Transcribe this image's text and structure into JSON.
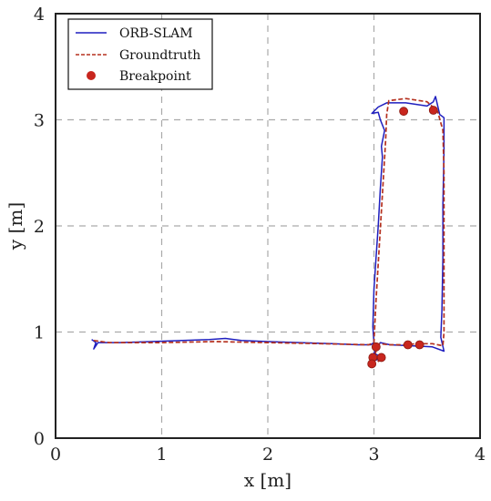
{
  "chart_data": {
    "type": "line",
    "title": "",
    "xlabel": "x [m]",
    "ylabel": "y [m]",
    "xlim": [
      0,
      4
    ],
    "ylim": [
      0,
      4
    ],
    "xticks": [
      "0",
      "1",
      "2",
      "3",
      "4"
    ],
    "yticks": [
      "0",
      "1",
      "2",
      "3",
      "4"
    ],
    "grid": true,
    "legend_position": "top-left",
    "series": [
      {
        "name": "ORB-SLAM",
        "kind": "line",
        "color": "#1f1fbf",
        "points": [
          [
            0.34,
            0.93
          ],
          [
            0.38,
            0.9
          ],
          [
            0.36,
            0.84
          ],
          [
            0.4,
            0.9
          ],
          [
            0.6,
            0.9
          ],
          [
            0.9,
            0.91
          ],
          [
            1.2,
            0.92
          ],
          [
            1.45,
            0.93
          ],
          [
            1.6,
            0.94
          ],
          [
            1.75,
            0.92
          ],
          [
            2.0,
            0.91
          ],
          [
            2.3,
            0.9
          ],
          [
            2.6,
            0.89
          ],
          [
            2.85,
            0.88
          ],
          [
            2.97,
            0.88
          ],
          [
            3.0,
            0.9
          ],
          [
            2.99,
            1.05
          ],
          [
            3.0,
            1.4
          ],
          [
            3.02,
            1.7
          ],
          [
            3.04,
            2.0
          ],
          [
            3.06,
            2.35
          ],
          [
            3.08,
            2.65
          ],
          [
            3.07,
            2.75
          ],
          [
            3.1,
            2.9
          ],
          [
            3.06,
            3.0
          ],
          [
            3.04,
            3.07
          ],
          [
            2.98,
            3.06
          ],
          [
            3.04,
            3.12
          ],
          [
            3.12,
            3.16
          ],
          [
            3.3,
            3.16
          ],
          [
            3.5,
            3.13
          ],
          [
            3.56,
            3.17
          ],
          [
            3.58,
            3.22
          ],
          [
            3.62,
            3.05
          ],
          [
            3.66,
            3.02
          ],
          [
            3.66,
            2.7
          ],
          [
            3.65,
            2.2
          ],
          [
            3.65,
            1.7
          ],
          [
            3.64,
            1.2
          ],
          [
            3.63,
            0.95
          ],
          [
            3.66,
            0.82
          ],
          [
            3.55,
            0.86
          ],
          [
            3.35,
            0.87
          ],
          [
            3.15,
            0.88
          ],
          [
            3.06,
            0.9
          ],
          [
            3.02,
            0.84
          ],
          [
            3.0,
            0.8
          ],
          [
            3.08,
            0.76
          ],
          [
            2.98,
            0.72
          ]
        ]
      },
      {
        "name": "Groundtruth",
        "kind": "dashed",
        "color": "#b5311f",
        "points": [
          [
            0.36,
            0.92
          ],
          [
            0.5,
            0.9
          ],
          [
            1.0,
            0.9
          ],
          [
            1.5,
            0.91
          ],
          [
            2.0,
            0.9
          ],
          [
            2.5,
            0.89
          ],
          [
            2.95,
            0.88
          ],
          [
            3.0,
            0.9
          ],
          [
            3.02,
            1.3
          ],
          [
            3.05,
            1.8
          ],
          [
            3.08,
            2.3
          ],
          [
            3.11,
            2.8
          ],
          [
            3.12,
            3.05
          ],
          [
            3.14,
            3.18
          ],
          [
            3.3,
            3.2
          ],
          [
            3.5,
            3.17
          ],
          [
            3.6,
            3.08
          ],
          [
            3.65,
            2.9
          ],
          [
            3.66,
            2.5
          ],
          [
            3.66,
            2.0
          ],
          [
            3.66,
            1.5
          ],
          [
            3.66,
            1.0
          ],
          [
            3.65,
            0.87
          ],
          [
            3.55,
            0.89
          ],
          [
            3.4,
            0.89
          ],
          [
            3.3,
            0.88
          ],
          [
            3.15,
            0.88
          ],
          [
            3.05,
            0.89
          ],
          [
            3.02,
            0.82
          ],
          [
            3.0,
            0.76
          ],
          [
            3.05,
            0.72
          ]
        ]
      },
      {
        "name": "Breakpoint",
        "kind": "scatter",
        "color": "#c8261e",
        "points": [
          [
            3.28,
            3.08
          ],
          [
            3.56,
            3.09
          ],
          [
            3.02,
            0.86
          ],
          [
            3.32,
            0.88
          ],
          [
            3.43,
            0.88
          ],
          [
            2.99,
            0.76
          ],
          [
            3.07,
            0.76
          ],
          [
            2.98,
            0.7
          ]
        ]
      }
    ]
  }
}
